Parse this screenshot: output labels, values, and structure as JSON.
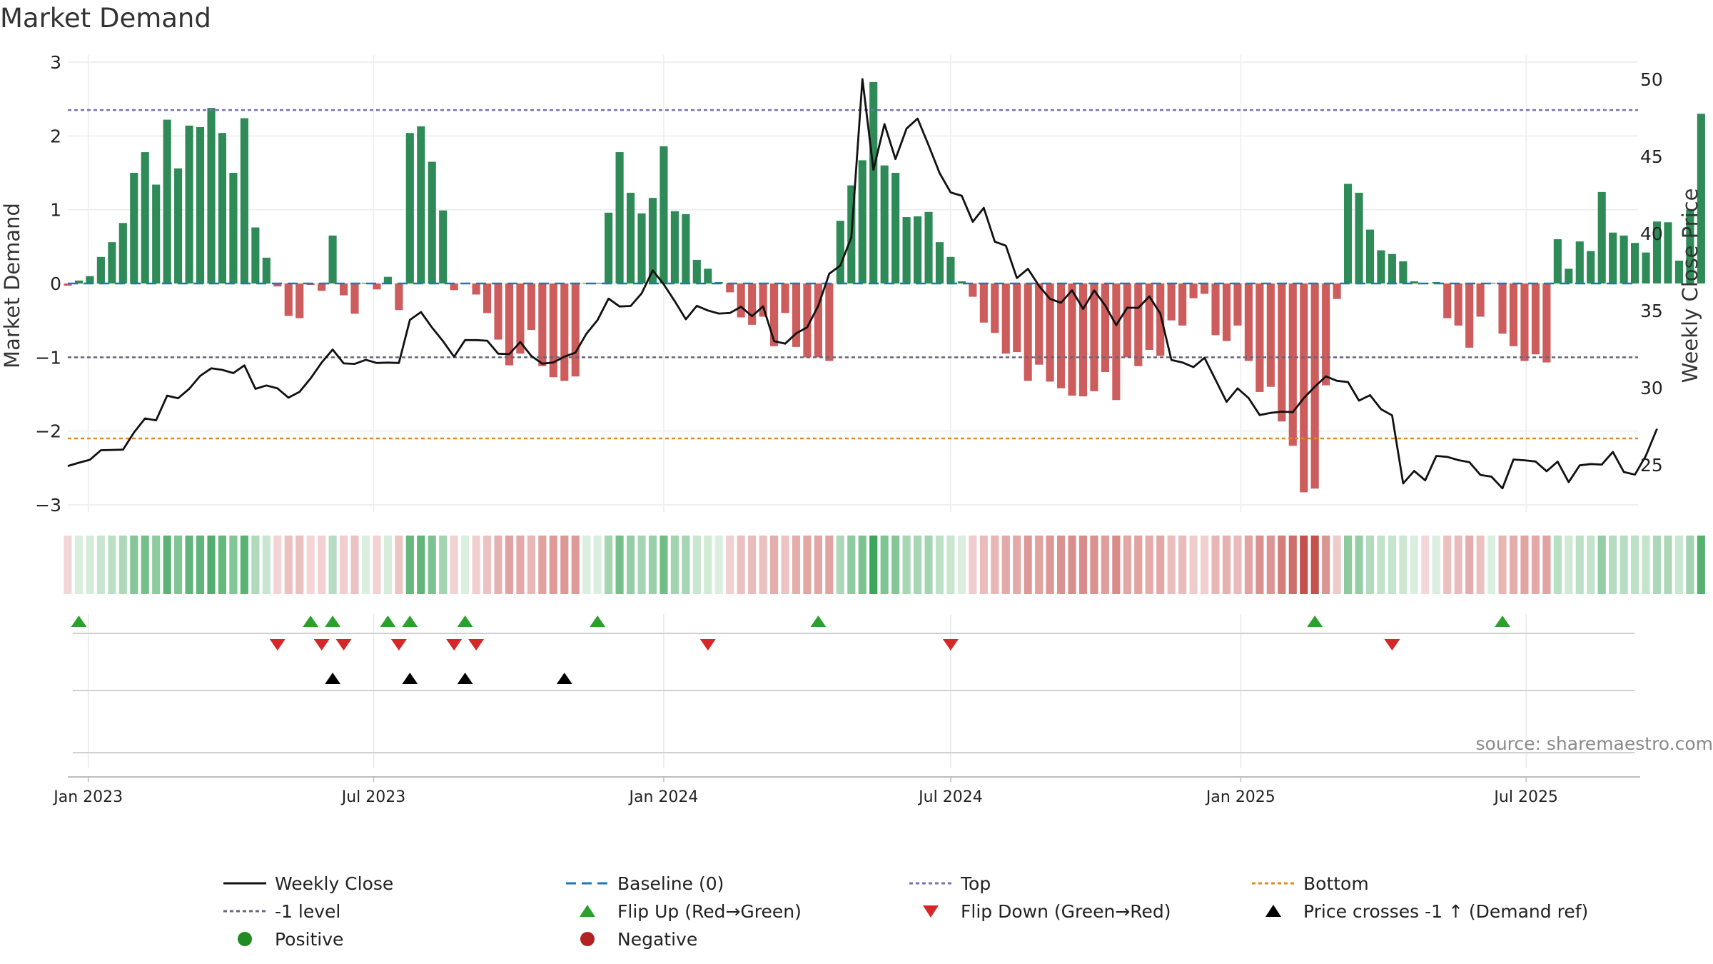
{
  "chart_data": {
    "type": "bar+line",
    "title": "Market Demand",
    "ylabel_left": "Market Demand",
    "ylabel_right": "Weekly Close Price",
    "source": "source: sharemaestro.com",
    "ylim_left": [
      -3.0,
      3.0
    ],
    "ylim_right": [
      22.4,
      51.1
    ],
    "yticks_left": [
      "3",
      "2",
      "1",
      "0",
      "−1",
      "−2",
      "−3"
    ],
    "yticks_left_values": [
      3,
      2,
      1,
      0,
      -1,
      -2,
      -3
    ],
    "yticks_right": [
      "50",
      "45",
      "40",
      "35",
      "30",
      "25"
    ],
    "yticks_right_values": [
      50,
      45,
      40,
      35,
      30,
      25
    ],
    "x_start": "2022-12-19",
    "x_range_days": [
      0,
      996
    ],
    "week_days": 7,
    "x_ticks": [
      {
        "label": "Jan 2023",
        "day": 13
      },
      {
        "label": "Jul 2023",
        "day": 194
      },
      {
        "label": "Jan 2024",
        "day": 378
      },
      {
        "label": "Jul 2024",
        "day": 560
      },
      {
        "label": "Jan 2025",
        "day": 744
      },
      {
        "label": "Jul 2025",
        "day": 925
      }
    ],
    "reference_lines": {
      "baseline": 0,
      "top": 2.35,
      "minus_one_level": -1,
      "bottom": -2.1
    },
    "colors": {
      "positive": "#2e8b57",
      "negative": "#cd5c5c",
      "price": "#111111",
      "baseline": "#1f77b4",
      "top_line": "#7b6fb0",
      "minus_one_line": "#666677",
      "bottom_line": "#e08a1e",
      "flip_up": "#2ca02c",
      "flip_down": "#d62728",
      "cross": "#000000",
      "legend_negative": "#b22222",
      "legend_positive": "#228b22"
    },
    "demand": [
      -0.03,
      0.04,
      0.1,
      0.36,
      0.56,
      0.82,
      1.5,
      1.78,
      1.34,
      2.22,
      1.56,
      2.14,
      2.12,
      2.38,
      2.04,
      1.5,
      2.24,
      0.76,
      0.35,
      -0.04,
      -0.44,
      -0.47,
      -0.02,
      -0.1,
      0.65,
      -0.16,
      -0.41,
      0.01,
      -0.08,
      0.09,
      -0.36,
      2.04,
      2.13,
      1.65,
      0.99,
      -0.09,
      0.01,
      -0.15,
      -0.4,
      -0.76,
      -1.11,
      -0.95,
      -0.63,
      -1.12,
      -1.27,
      -1.32,
      -1.26,
      0.01,
      0.01,
      0.96,
      1.78,
      1.23,
      0.95,
      1.16,
      1.86,
      0.98,
      0.94,
      0.32,
      0.2,
      0.02,
      -0.12,
      -0.46,
      -0.56,
      -0.45,
      -0.85,
      -0.4,
      -0.86,
      -1.0,
      -1.0,
      -1.05,
      0.85,
      1.33,
      1.67,
      2.73,
      1.6,
      1.5,
      0.9,
      0.91,
      0.97,
      0.56,
      0.36,
      0.03,
      -0.18,
      -0.53,
      -0.67,
      -0.95,
      -0.93,
      -1.32,
      -1.1,
      -1.33,
      -1.42,
      -1.52,
      -1.53,
      -1.46,
      -1.2,
      -1.58,
      -1.0,
      -1.12,
      -0.9,
      -0.98,
      -0.5,
      -0.57,
      -0.2,
      -0.14,
      -0.7,
      -0.78,
      -0.57,
      -1.05,
      -1.47,
      -1.4,
      -1.87,
      -2.2,
      -2.83,
      -2.78,
      -1.38,
      -0.21,
      1.35,
      1.23,
      0.73,
      0.45,
      0.4,
      0.3,
      0.03,
      -0.01,
      0.02,
      -0.47,
      -0.57,
      -0.87,
      -0.45,
      0.01,
      -0.68,
      -0.85,
      -1.05,
      -0.96,
      -1.07,
      0.6,
      0.2,
      0.57,
      0.44,
      1.24,
      0.69,
      0.65,
      0.55,
      0.42,
      0.84,
      0.83,
      0.31,
      1.0,
      2.3
    ],
    "price": [
      24.92,
      25.13,
      25.32,
      25.94,
      25.96,
      25.98,
      27.1,
      28.0,
      27.88,
      29.48,
      29.31,
      29.92,
      30.76,
      31.25,
      31.15,
      30.94,
      31.44,
      29.92,
      30.14,
      29.95,
      29.35,
      29.73,
      30.6,
      31.62,
      32.47,
      31.57,
      31.54,
      31.8,
      31.6,
      31.62,
      31.6,
      34.39,
      34.9,
      33.9,
      33.01,
      32.0,
      33.08,
      33.08,
      33.04,
      32.2,
      32.17,
      32.96,
      32.05,
      31.55,
      31.63,
      32.01,
      32.27,
      33.5,
      34.38,
      35.77,
      35.26,
      35.29,
      36.11,
      37.6,
      36.7,
      35.6,
      34.43,
      35.3,
      35.0,
      34.8,
      34.84,
      35.24,
      34.63,
      35.27,
      33.01,
      32.85,
      33.52,
      33.91,
      35.3,
      37.39,
      37.91,
      39.74,
      50.0,
      44.12,
      47.08,
      44.82,
      46.79,
      47.44,
      45.71,
      43.9,
      42.65,
      42.44,
      40.75,
      41.65,
      39.46,
      39.2,
      37.1,
      37.7,
      36.6,
      35.75,
      35.5,
      36.31,
      35.1,
      36.3,
      35.33,
      34.05,
      35.18,
      35.17,
      35.91,
      34.79,
      31.79,
      31.63,
      31.33,
      31.93,
      30.51,
      29.08,
      29.95,
      29.32,
      28.22,
      28.36,
      28.44,
      28.41,
      29.32,
      30.06,
      30.73,
      30.44,
      30.36,
      29.16,
      29.51,
      28.6,
      28.2,
      23.79,
      24.6,
      23.99,
      25.57,
      25.51,
      25.3,
      25.17,
      24.34,
      24.23,
      23.47,
      25.34,
      25.29,
      25.21,
      24.58,
      25.2,
      23.87,
      24.96,
      25.05,
      25.01,
      25.83,
      24.53,
      24.36,
      25.59,
      27.33
    ],
    "flip_up_weeks": [
      1,
      22,
      24,
      29,
      31,
      36,
      48,
      68,
      113,
      130
    ],
    "flip_down_weeks": [
      19,
      23,
      25,
      30,
      35,
      37,
      58,
      80,
      120
    ],
    "price_cross_weeks": [
      24,
      31,
      36,
      45
    ],
    "legend": [
      {
        "label": "Weekly Close",
        "symbol": "solid-line",
        "color_key": "price"
      },
      {
        "label": "Baseline (0)",
        "symbol": "dashed-line",
        "color_key": "baseline"
      },
      {
        "label": "Top",
        "symbol": "dotted-line",
        "color_key": "top_line"
      },
      {
        "label": "Bottom",
        "symbol": "dotted-line",
        "color_key": "bottom_line"
      },
      {
        "label": "-1 level",
        "symbol": "dotted-line",
        "color_key": "minus_one_line"
      },
      {
        "label": "Flip Up (Red→Green)",
        "symbol": "triangle-up",
        "color_key": "flip_up"
      },
      {
        "label": "Flip Down (Green→Red)",
        "symbol": "triangle-down",
        "color_key": "flip_down"
      },
      {
        "label": "Price crosses -1 ↑ (Demand ref)",
        "symbol": "triangle-up",
        "color_key": "cross"
      },
      {
        "label": "Positive",
        "symbol": "circle",
        "color_key": "legend_positive"
      },
      {
        "label": "Negative",
        "symbol": "circle",
        "color_key": "legend_negative"
      }
    ]
  }
}
